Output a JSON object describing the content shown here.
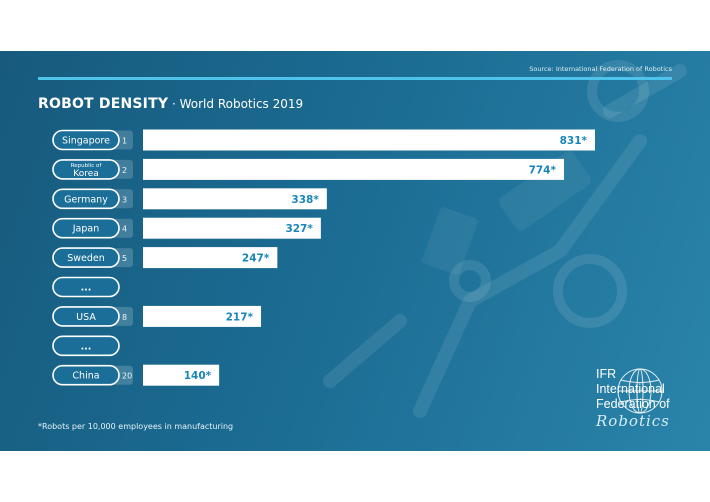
{
  "source": "Source: International Federation of Robotics",
  "title_main": "ROBOT DENSITY",
  "title_sub": " · World Robotics 2019",
  "footnote": "*Robots per 10,000 employees in manufacturing",
  "logo": {
    "line1": "IFR",
    "line2": "International",
    "line3": "Federation of",
    "line4": "Robotics"
  },
  "colors": {
    "background": "#1b6b92",
    "rule": "#4fc3ea",
    "bar": "#ffffff",
    "value_text": "#1a86b8"
  },
  "chart_data": {
    "type": "bar",
    "orientation": "horizontal",
    "title": "ROBOT DENSITY · World Robotics 2019",
    "rows": [
      {
        "label": "Singapore",
        "rank": "1",
        "value": 831,
        "value_label": "831*"
      },
      {
        "label_small": "Republic of",
        "label": "Korea",
        "rank": "2",
        "value": 774,
        "value_label": "774*"
      },
      {
        "label": "Germany",
        "rank": "3",
        "value": 338,
        "value_label": "338*"
      },
      {
        "label": "Japan",
        "rank": "4",
        "value": 327,
        "value_label": "327*"
      },
      {
        "label": "Sweden",
        "rank": "5",
        "value": 247,
        "value_label": "247*"
      },
      {
        "label": "...",
        "rank": "",
        "value": null,
        "value_label": ""
      },
      {
        "label": "USA",
        "rank": "8",
        "value": 217,
        "value_label": "217*"
      },
      {
        "label": "...",
        "rank": "",
        "value": null,
        "value_label": ""
      },
      {
        "label": "China",
        "rank": "20",
        "value": 140,
        "value_label": "140*"
      }
    ],
    "xlim": [
      0,
      831
    ],
    "grid": false,
    "legend": "none"
  }
}
